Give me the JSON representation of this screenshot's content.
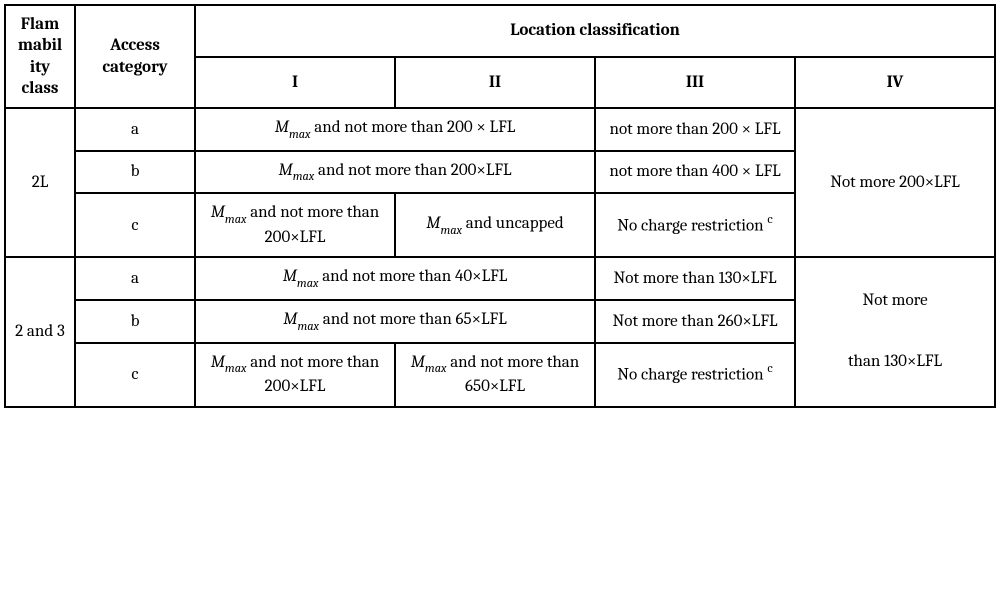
{
  "headers": {
    "flammability": "Flam mabil ity class",
    "access": "Access category",
    "location": "Location classification",
    "loc_i": "I",
    "loc_ii": "II",
    "loc_iii": "III",
    "loc_iv": "IV"
  },
  "g1": {
    "class": "2L",
    "a": "a",
    "b": "b",
    "c": "c",
    "a_i_ii_pre": "M",
    "a_i_ii_sub": "max",
    "a_i_ii_post": "  and not more than 200 × LFL",
    "a_iii": "not more than 200 × LFL",
    "b_i_ii_pre": "M",
    "b_i_ii_sub": "max",
    "b_i_ii_post": "  and not more than 200×LFL",
    "b_iii": "not more than 400 × LFL",
    "c_i_pre": "M",
    "c_i_sub": "max",
    "c_i_post": "  and not more than 200×LFL",
    "c_ii_pre": "M",
    "c_ii_sub": "max",
    "c_ii_post": "  and uncapped",
    "c_iii_text": "No charge restriction ",
    "c_iii_sup": "c",
    "iv": "Not more 200×LFL"
  },
  "g2": {
    "class": "2 and 3",
    "a": "a",
    "b": "b",
    "c": "c",
    "a_i_ii_pre": "M",
    "a_i_ii_sub": "max",
    "a_i_ii_post": "  and not more than 40×LFL",
    "a_iii": "Not more than 130×LFL",
    "b_i_ii_pre": "M",
    "b_i_ii_sub": "max",
    "b_i_ii_post": "  and not more than 65×LFL",
    "b_iii": "Not more than 260×LFL",
    "c_i_pre": "M",
    "c_i_sub": "max",
    "c_i_post": "  and not more than 200×LFL",
    "c_ii_pre": "M",
    "c_ii_sub": "max",
    "c_ii_post": "  and not more than 650×LFL",
    "c_iii_text": "No charge restriction ",
    "c_iii_sup": "c",
    "iv_1": "Not more",
    "iv_2": "than 130×LFL"
  }
}
